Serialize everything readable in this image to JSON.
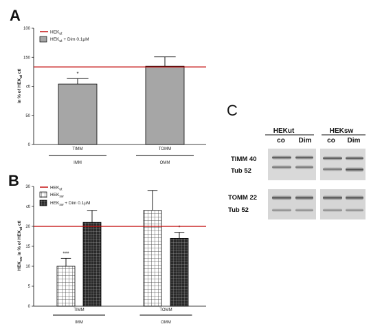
{
  "colors": {
    "reference_line": "#c00000",
    "bar_gray": "#a6a6a6",
    "axis": "#000000"
  },
  "panels": {
    "a": "A",
    "b": "B",
    "c": "C"
  },
  "chart_data": [
    {
      "panel": "A",
      "type": "bar",
      "ylabel_main": "in % of HEK",
      "ylabel_sub": "ut",
      "ylabel_tail": " ctl",
      "ylim": [
        0,
        150
      ],
      "yticks": [
        "0",
        "50",
        "ctl",
        "150"
      ],
      "yticks_top": "100",
      "reference_line": {
        "label_main": "HEK",
        "label_sub": "ut",
        "value": 100
      },
      "legend": [
        {
          "main": "HEK",
          "sub": "ut",
          "tail": " + Dim 0.1µM",
          "fill": "gray"
        }
      ],
      "categories": [
        "TIMM",
        "TOMM"
      ],
      "groups": [
        "IMM",
        "OMM"
      ],
      "series": [
        {
          "values": [
            78,
            101
          ],
          "errors": [
            7,
            12
          ],
          "fill": "gray"
        }
      ],
      "annotations": [
        "*",
        ""
      ]
    },
    {
      "panel": "B",
      "type": "bar",
      "ylabel_main": "HEK",
      "ylabel_sub": "sw",
      "ylabel_mid": " in % of HEK",
      "ylabel_sub2": "ut",
      "ylabel_tail": " ctl",
      "ylim": [
        0,
        30
      ],
      "yticks": [
        "0",
        "5",
        "10",
        "15",
        "20",
        "ctl"
      ],
      "yticks_top": "30",
      "reference_line": {
        "label_main": "HEK",
        "label_sub": "ut",
        "value": 20
      },
      "legend": [
        {
          "main": "HEK",
          "sub": "sw",
          "tail": "",
          "fill": "grid-light"
        },
        {
          "main": "HEK",
          "sub": "sw",
          "tail": " + Dim 0.1µM",
          "fill": "grid-dark"
        }
      ],
      "categories": [
        "TIMM",
        "TOMM"
      ],
      "groups": [
        "IMM",
        "OMM"
      ],
      "series": [
        {
          "values": [
            10,
            24
          ],
          "errors": [
            2,
            5
          ],
          "fill": "grid-light"
        },
        {
          "values": [
            21,
            17
          ],
          "errors": [
            3,
            1.5
          ],
          "fill": "grid-dark"
        }
      ],
      "annotations": [
        [
          "***",
          ""
        ],
        [
          "",
          "*"
        ]
      ]
    }
  ],
  "blot": {
    "cell_lines": [
      "HEKut",
      "HEKsw"
    ],
    "lanes": [
      "co",
      "Dim",
      "co",
      "Dim"
    ],
    "rows": [
      "TIMM 40",
      "Tub 52",
      "TOMM 22",
      "Tub 52"
    ]
  }
}
